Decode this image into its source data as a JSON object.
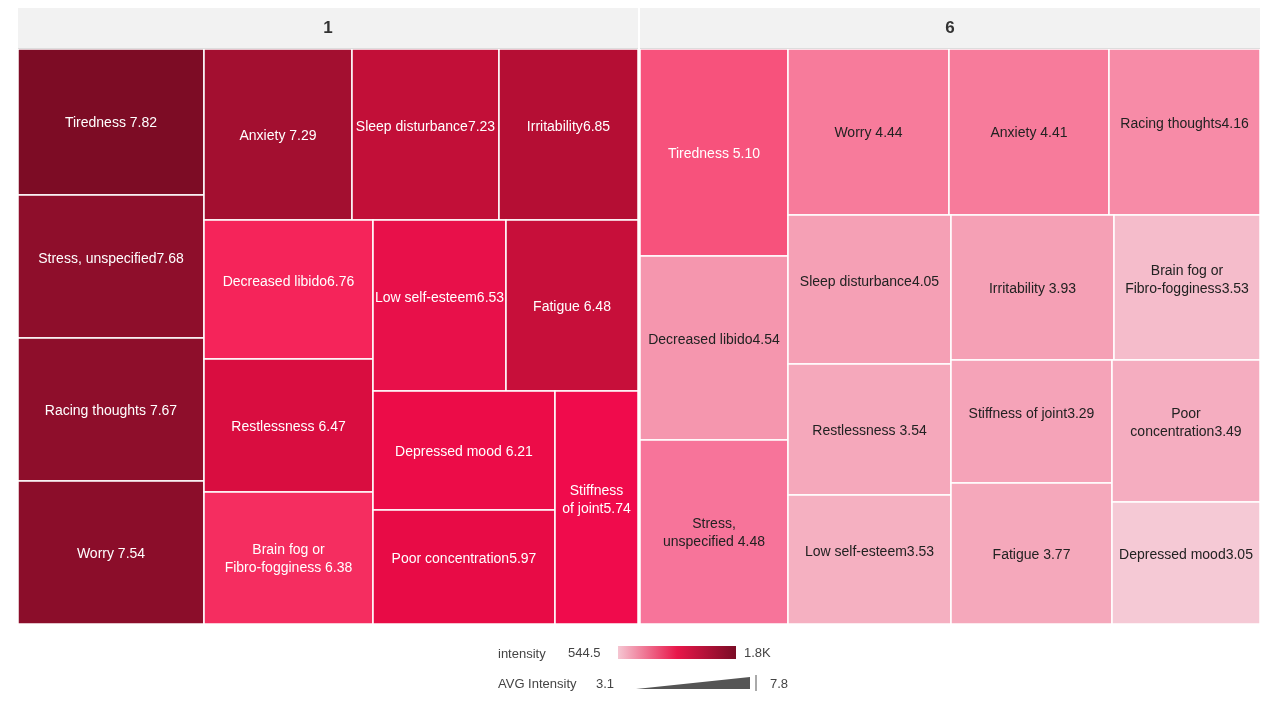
{
  "chart_data": [
    {
      "type": "other",
      "title": "1",
      "categories": [
        "Tiredness",
        "Stress, unspecified",
        "Racing thoughts",
        "Worry",
        "Anxiety",
        "Sleep disturbance",
        "Irritability",
        "Decreased libido",
        "Restlessness",
        "Brain fog or Fibro-fogginess",
        "Low self-esteem",
        "Fatigue",
        "Depressed mood",
        "Poor concentration",
        "Stiffness of joint"
      ],
      "values": [
        7.82,
        7.68,
        7.67,
        7.54,
        7.29,
        7.23,
        6.85,
        6.76,
        6.47,
        6.38,
        6.53,
        6.48,
        6.21,
        5.97,
        5.74
      ],
      "value_labels": [
        "7.82",
        "7.68",
        "7.67",
        "7.54",
        "7.29",
        "7.23",
        "6.85",
        "6.76",
        "6.47",
        "6.38",
        "6.53",
        "6.48",
        "6.21",
        "5.97",
        "5.74"
      ],
      "colors": [
        "#7d0c25",
        "#8e0e2b",
        "#8e0e2b",
        "#8b0d2a",
        "#a30f30",
        "#c20f38",
        "#b50e34",
        "#f5245a",
        "#d90d40",
        "#f52d60",
        "#e8104a",
        "#c70f3a",
        "#ec0c48",
        "#e80b46",
        "#f00b4c"
      ]
    },
    {
      "type": "other",
      "title": "6",
      "categories": [
        "Tiredness",
        "Decreased libido",
        "Stress, unspecified",
        "Worry",
        "Anxiety",
        "Racing thoughts",
        "Sleep disturbance",
        "Restlessness",
        "Low self-esteem",
        "Irritability",
        "Brain fog or Fibro-fogginess",
        "Stiffness of joint",
        "Fatigue",
        "Poor concentration",
        "Depressed mood"
      ],
      "values": [
        5.1,
        4.54,
        4.48,
        4.44,
        4.41,
        4.16,
        4.05,
        3.54,
        3.53,
        3.93,
        3.53,
        3.29,
        3.77,
        3.49,
        3.05
      ],
      "value_labels": [
        "5.10",
        "4.54",
        "4.48",
        "4.44",
        "4.41",
        "4.16",
        "4.05",
        "3.54",
        "3.53",
        "3.93",
        "3.53",
        "3.29",
        "3.77",
        "3.49",
        "3.05"
      ],
      "colors": [
        "#f7527c",
        "#f596ae",
        "#f7749a",
        "#f77b9b",
        "#f77b9b",
        "#f78ba7",
        "#f5a0b5",
        "#f5a8bb",
        "#f5b0c1",
        "#f5a0b5",
        "#f5bccb",
        "#f5a3b8",
        "#f5a8bb",
        "#f5adc0",
        "#f5c9d5"
      ]
    },
    {
      "type": "other",
      "clabel": "intensity",
      "colors": [
        "#f5c6d2",
        "#e8174a",
        "#7a0c25"
      ],
      "annotations": [
        "544.5",
        "1.8K",
        "AVG Intensity",
        "3.1",
        "7.8"
      ]
    }
  ]
}
